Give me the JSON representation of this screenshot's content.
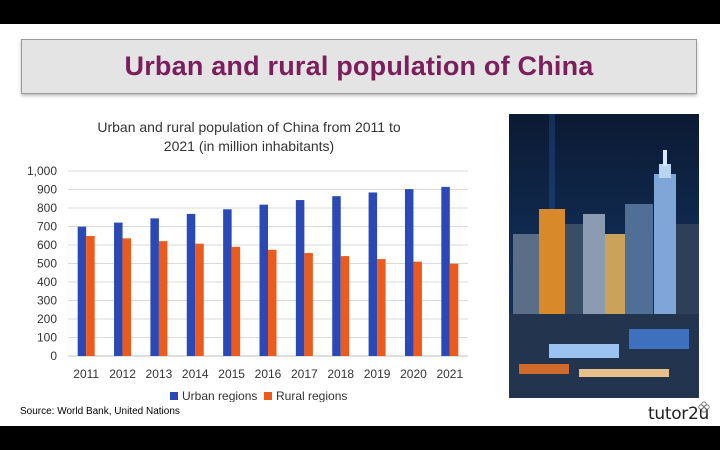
{
  "slide": {
    "title": "Urban and rural population of China",
    "source": "Source: World Bank, United Nations",
    "logo_text": "tutor2u"
  },
  "colors": {
    "title": "#7b1f5c",
    "urban": "#2a48b6",
    "rural": "#ed5b1c"
  },
  "icons": {
    "photo": "city-skyline-night-photo",
    "logo_mark": "flower-icon"
  },
  "chart_data": {
    "type": "bar",
    "title": "Urban and rural population of China from 2011 to 2021 (in million inhabitants)",
    "title_lines": [
      "Urban and rural population of China from 2011 to",
      "2021 (in million inhabitants)"
    ],
    "categories": [
      "2011",
      "2012",
      "2013",
      "2014",
      "2015",
      "2016",
      "2017",
      "2018",
      "2019",
      "2020",
      "2021"
    ],
    "series": [
      {
        "name": "Urban regions",
        "values": [
          699,
          721,
          744,
          768,
          793,
          818,
          843,
          864,
          884,
          902,
          914
        ]
      },
      {
        "name": "Rural regions",
        "values": [
          649,
          636,
          621,
          607,
          590,
          574,
          557,
          540,
          524,
          510,
          499
        ]
      }
    ],
    "yticks": [
      "0",
      "100",
      "200",
      "300",
      "400",
      "500",
      "600",
      "700",
      "800",
      "900",
      "1,000"
    ],
    "ylim": [
      0,
      1000
    ],
    "grid": true,
    "legend_position": "bottom"
  }
}
